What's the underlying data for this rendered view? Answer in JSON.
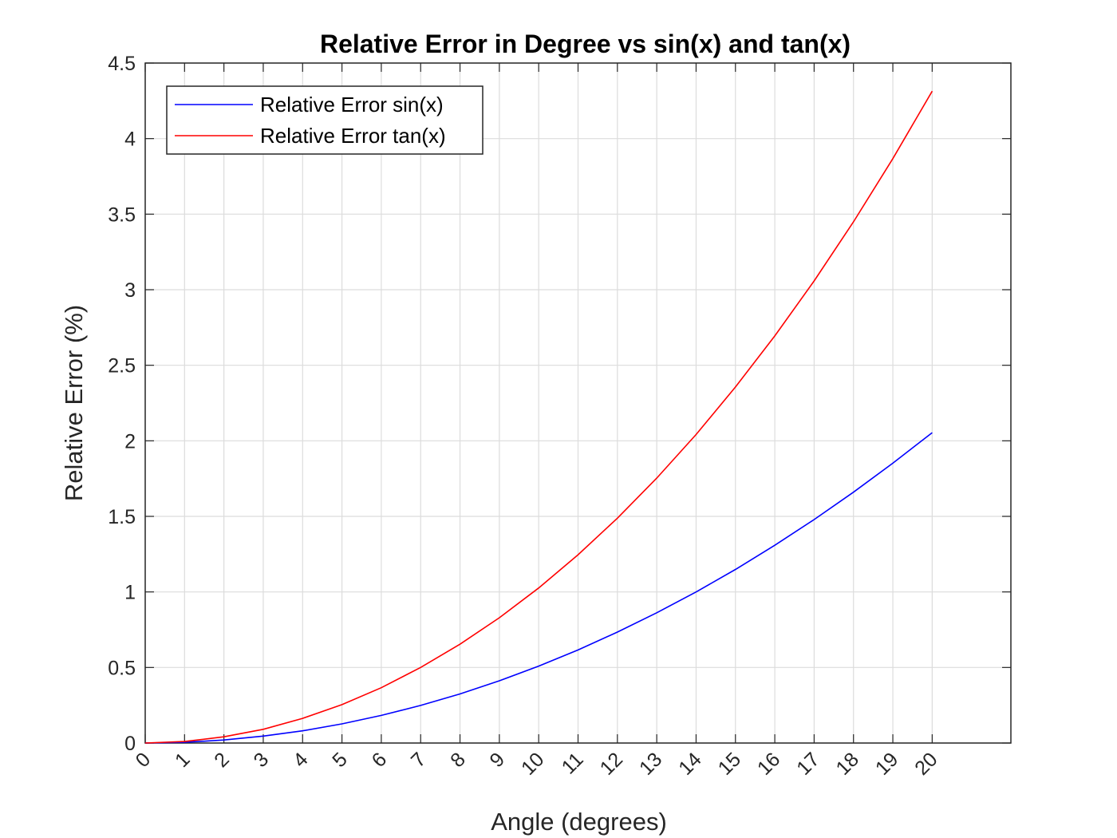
{
  "chart_data": {
    "type": "line",
    "title": "Relative Error in Degree vs sin(x) and tan(x)",
    "xlabel": "Angle (degrees)",
    "ylabel": "Relative Error (%)",
    "xlim": [
      0,
      22
    ],
    "ylim": [
      0,
      4.5
    ],
    "x_ticks": [
      0,
      1,
      2,
      3,
      4,
      5,
      6,
      7,
      8,
      9,
      10,
      11,
      12,
      13,
      14,
      15,
      16,
      17,
      18,
      19,
      20
    ],
    "x_tick_labels": [
      "0",
      "1",
      "2",
      "3",
      "4",
      "5",
      "6",
      "7",
      "8",
      "9",
      "10",
      "11",
      "12",
      "13",
      "14",
      "15",
      "16",
      "17",
      "18",
      "19",
      "20"
    ],
    "y_ticks": [
      0,
      0.5,
      1,
      1.5,
      2,
      2.5,
      3,
      3.5,
      4,
      4.5
    ],
    "y_tick_labels": [
      "0",
      "0.5",
      "1",
      "1.5",
      "2",
      "2.5",
      "3",
      "3.5",
      "4",
      "4.5"
    ],
    "grid": true,
    "legend_position": "top-left",
    "x": [
      0,
      1,
      2,
      3,
      4,
      5,
      6,
      7,
      8,
      9,
      10,
      11,
      12,
      13,
      14,
      15,
      16,
      17,
      18,
      19,
      20
    ],
    "series": [
      {
        "name": "Relative Error sin(x)",
        "color": "#0000ff",
        "values": [
          0,
          0.005,
          0.02,
          0.046,
          0.081,
          0.127,
          0.183,
          0.249,
          0.325,
          0.412,
          0.509,
          0.616,
          0.734,
          0.862,
          1.0,
          1.149,
          1.309,
          1.479,
          1.66,
          1.852,
          2.054
        ]
      },
      {
        "name": "Relative Error tan(x)",
        "color": "#ff0000",
        "values": [
          0,
          0.01,
          0.041,
          0.091,
          0.163,
          0.254,
          0.366,
          0.5,
          0.654,
          0.829,
          1.026,
          1.246,
          1.488,
          1.753,
          2.042,
          2.356,
          2.694,
          3.058,
          3.449,
          3.867,
          4.314
        ]
      }
    ]
  }
}
